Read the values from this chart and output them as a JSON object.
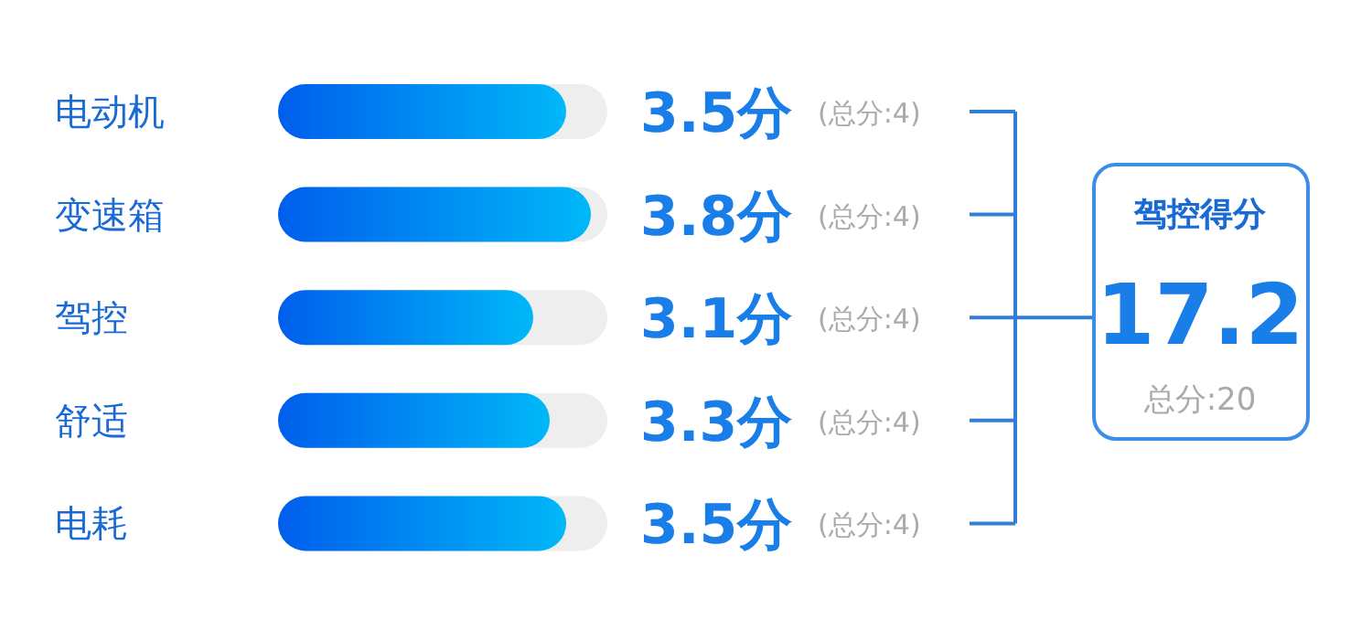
{
  "chart_data": [
    {
      "type": "bar",
      "orientation": "horizontal",
      "categories": [
        "电动机",
        "变速箱",
        "驾控",
        "舒适",
        "电耗"
      ],
      "values": [
        3.5,
        3.8,
        3.1,
        3.3,
        3.5
      ],
      "color": "#00b8f8",
      "xlim": [
        0,
        4
      ],
      "value_labels": [
        "3.5分",
        "3.8分",
        "3.1分",
        "3.3分",
        "3.5分"
      ],
      "annotations": [
        "(总分:4)",
        "(总分:4)",
        "(总分:4)",
        "(总分:4)",
        "(总分:4)"
      ]
    },
    {
      "type": "other",
      "title": "驾控得分",
      "annotations": [
        "17.2",
        "总分:20"
      ]
    }
  ]
}
